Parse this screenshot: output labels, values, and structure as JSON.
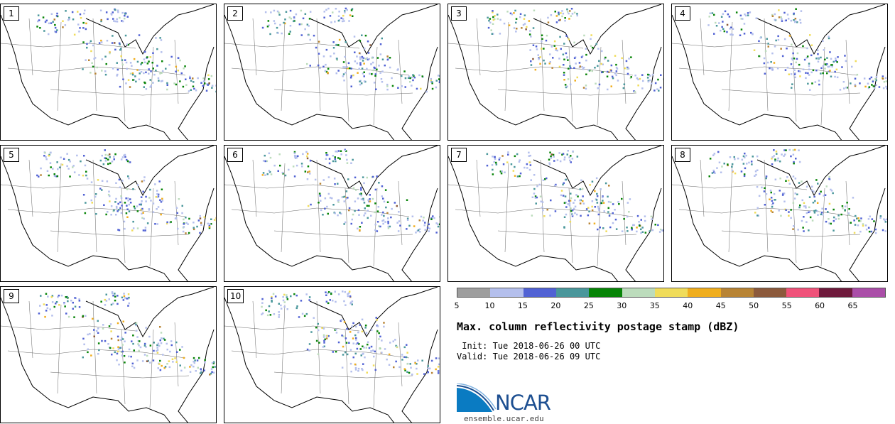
{
  "panels": [
    {
      "label": "1"
    },
    {
      "label": "2"
    },
    {
      "label": "3"
    },
    {
      "label": "4"
    },
    {
      "label": "5"
    },
    {
      "label": "6"
    },
    {
      "label": "7"
    },
    {
      "label": "8"
    },
    {
      "label": "9"
    },
    {
      "label": "10"
    }
  ],
  "colorbar": {
    "colors": [
      "#9e9e9e",
      "#b4bfec",
      "#5162d4",
      "#4a979b",
      "#078407",
      "#bcdcbc",
      "#f0dc5a",
      "#f0ae1e",
      "#b88435",
      "#8c5a3c",
      "#f0527a",
      "#6e1a3c",
      "#aa4ea8"
    ],
    "tick_labels": [
      "5",
      "10",
      "15",
      "20",
      "25",
      "30",
      "35",
      "40",
      "45",
      "50",
      "55",
      "60",
      "65"
    ]
  },
  "title": "Max. column reflectivity postage stamp (dBZ)",
  "init_text": " Init: Tue 2018-06-26 00 UTC",
  "valid_text": "Valid: Tue 2018-06-26 09 UTC",
  "logo_text": "NCAR",
  "url": "ensemble.ucar.edu"
}
